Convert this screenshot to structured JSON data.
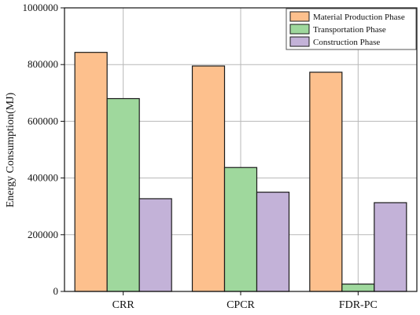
{
  "chart_data": {
    "type": "bar",
    "title": "",
    "xlabel": "",
    "ylabel": "Energy Consumption(MJ)",
    "ylim": [
      0,
      1000000
    ],
    "yticks": [
      0,
      200000,
      400000,
      600000,
      800000,
      1000000
    ],
    "grid": true,
    "legend_position": "top-right",
    "categories": [
      "CRR",
      "CPCR",
      "FDR-PC"
    ],
    "series": [
      {
        "name": "Material Production Phase",
        "color": "#fdc08d",
        "values": [
          843000,
          795000,
          773000
        ]
      },
      {
        "name": "Transportation Phase",
        "color": "#9fd89d",
        "values": [
          680000,
          437000,
          26000
        ]
      },
      {
        "name": "Construction Phase",
        "color": "#c3b2d8",
        "values": [
          327000,
          350000,
          313000
        ]
      }
    ]
  }
}
